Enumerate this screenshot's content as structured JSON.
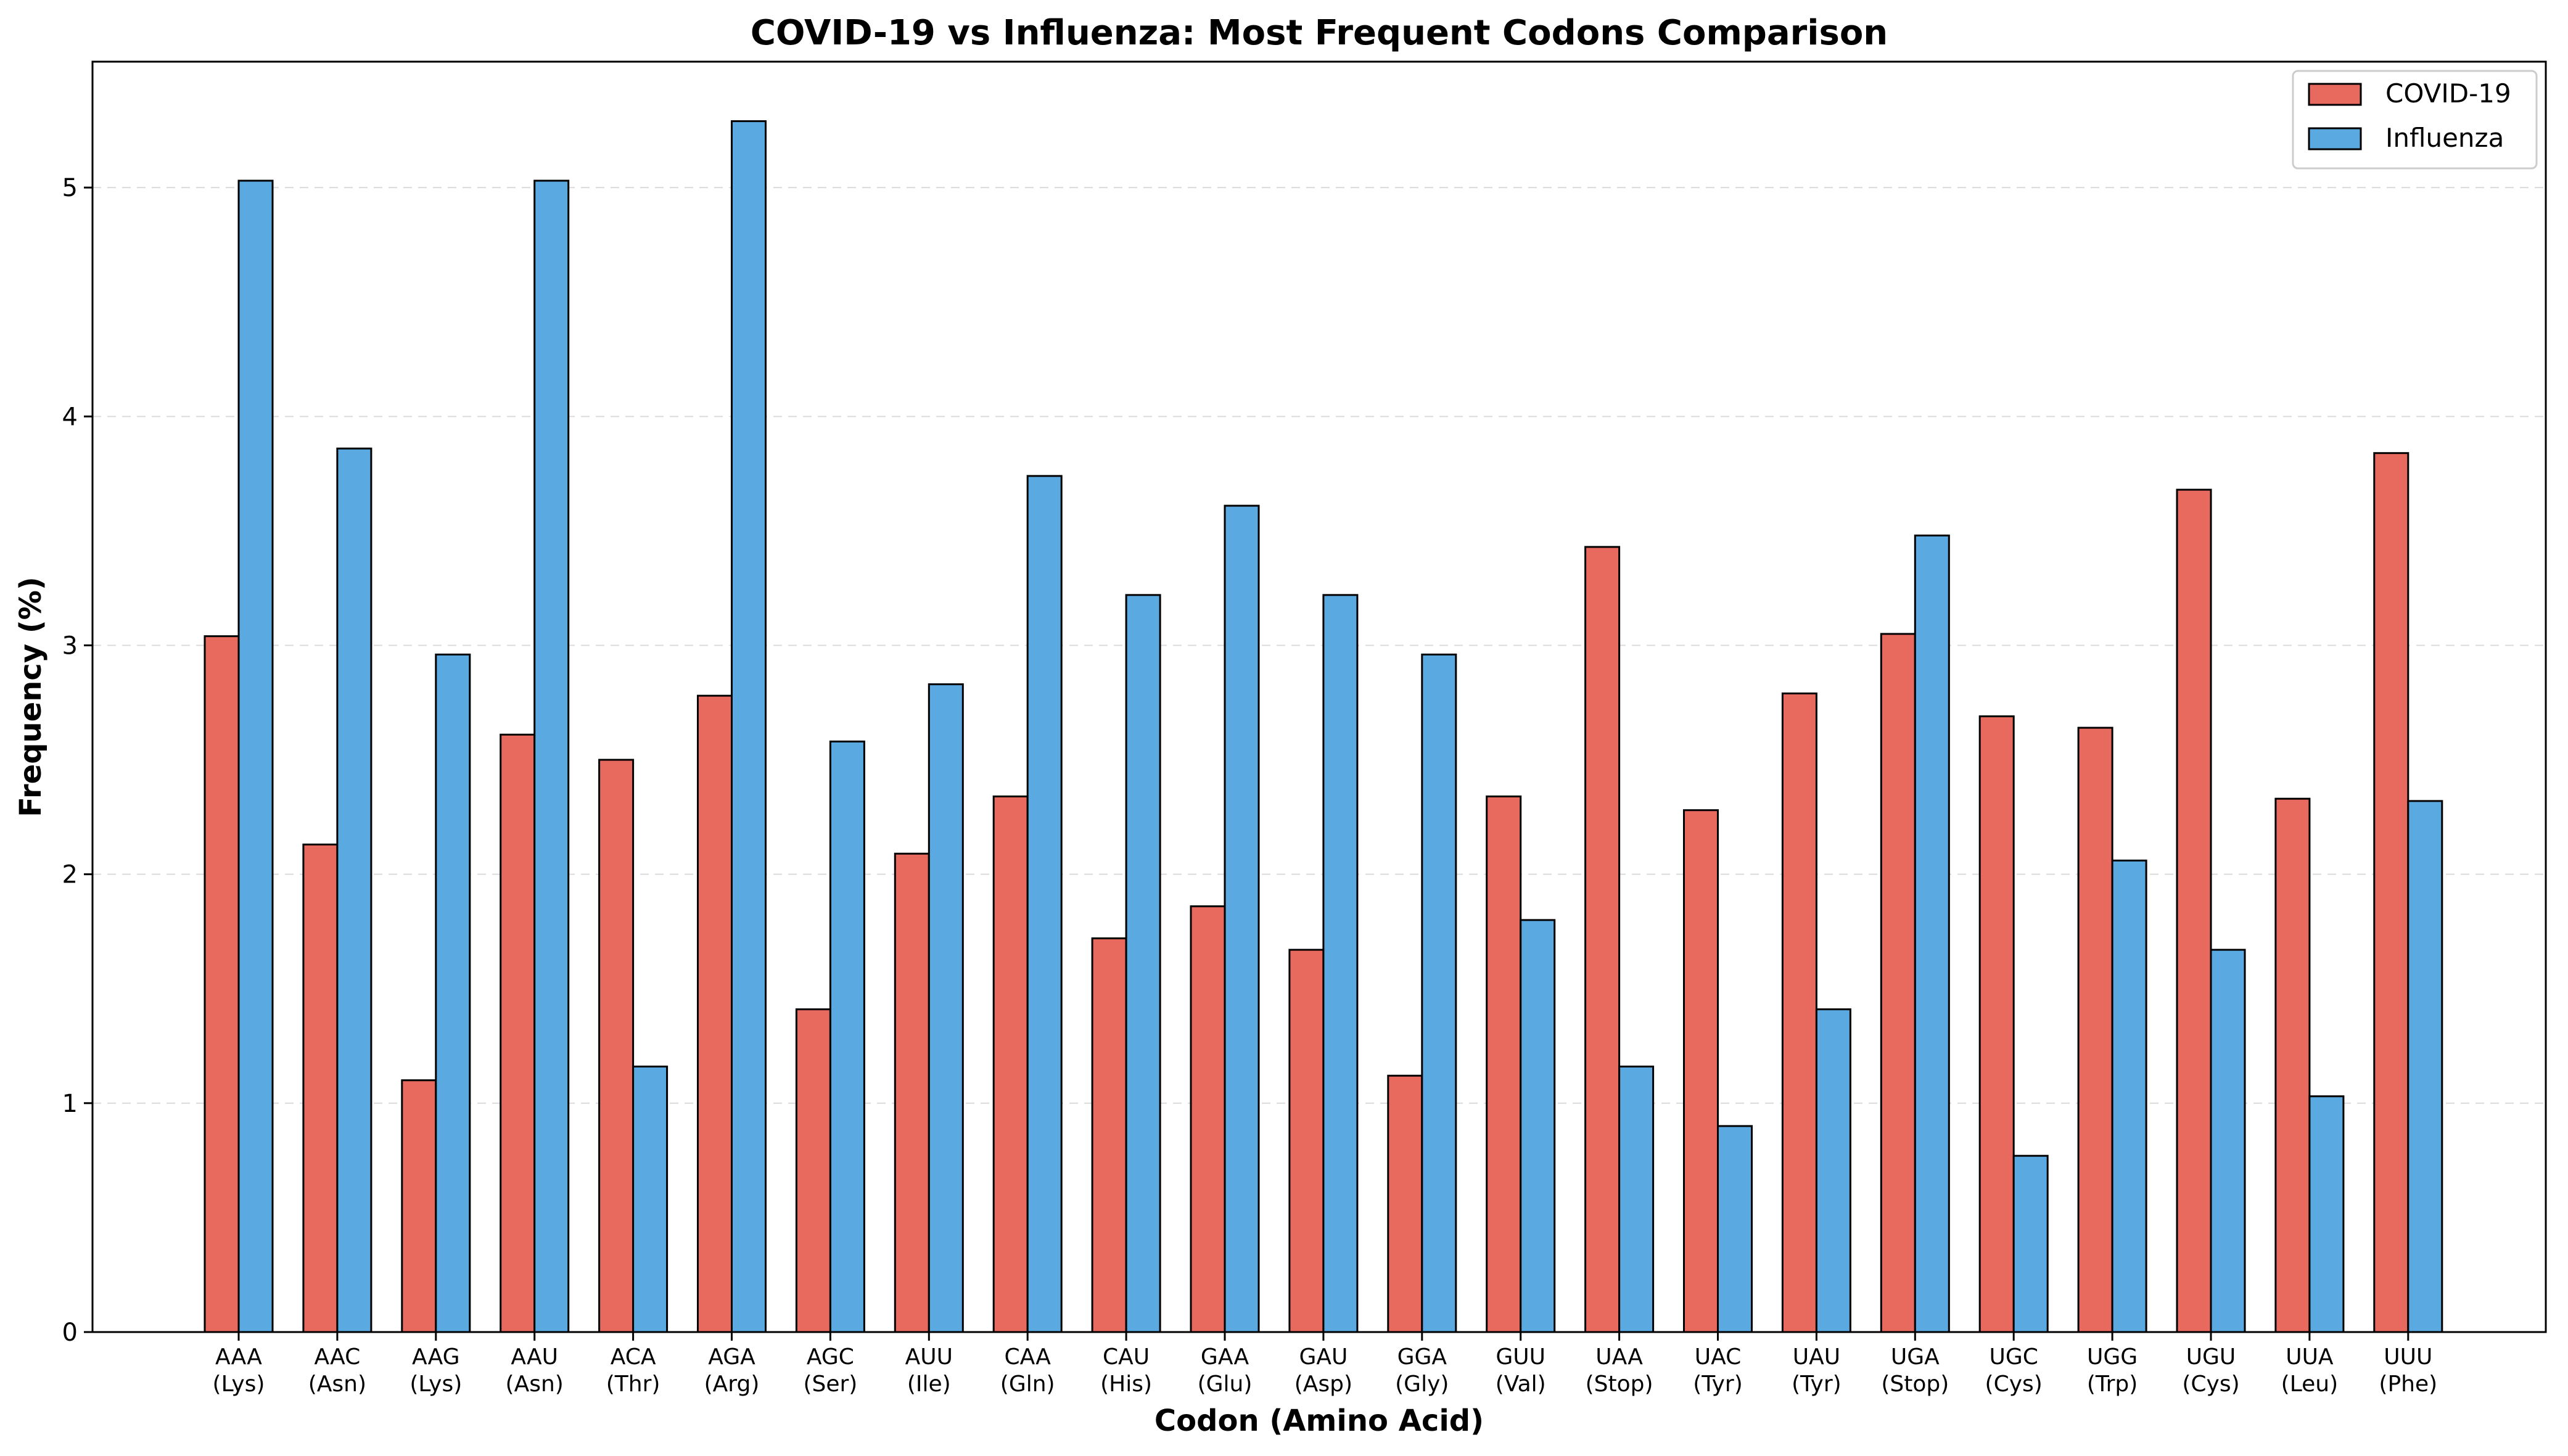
{
  "chart_data": {
    "type": "bar",
    "title": "COVID-19 vs Influenza: Most Frequent Codons Comparison",
    "xlabel": "Codon (Amino Acid)",
    "ylabel": "Frequency (%)",
    "ylim": [
      0,
      5.55
    ],
    "yticks": [
      "0",
      "1",
      "2",
      "3",
      "4",
      "5"
    ],
    "grid": "horizontal dashed",
    "legend_position": "top-right",
    "categories": [
      {
        "codon": "AAA",
        "amino": "(Lys)"
      },
      {
        "codon": "AAC",
        "amino": "(Asn)"
      },
      {
        "codon": "AAG",
        "amino": "(Lys)"
      },
      {
        "codon": "AAU",
        "amino": "(Asn)"
      },
      {
        "codon": "ACA",
        "amino": "(Thr)"
      },
      {
        "codon": "AGA",
        "amino": "(Arg)"
      },
      {
        "codon": "AGC",
        "amino": "(Ser)"
      },
      {
        "codon": "AUU",
        "amino": "(Ile)"
      },
      {
        "codon": "CAA",
        "amino": "(Gln)"
      },
      {
        "codon": "CAU",
        "amino": "(His)"
      },
      {
        "codon": "GAA",
        "amino": "(Glu)"
      },
      {
        "codon": "GAU",
        "amino": "(Asp)"
      },
      {
        "codon": "GGA",
        "amino": "(Gly)"
      },
      {
        "codon": "GUU",
        "amino": "(Val)"
      },
      {
        "codon": "UAA",
        "amino": "(Stop)"
      },
      {
        "codon": "UAC",
        "amino": "(Tyr)"
      },
      {
        "codon": "UAU",
        "amino": "(Tyr)"
      },
      {
        "codon": "UGA",
        "amino": "(Stop)"
      },
      {
        "codon": "UGC",
        "amino": "(Cys)"
      },
      {
        "codon": "UGG",
        "amino": "(Trp)"
      },
      {
        "codon": "UGU",
        "amino": "(Cys)"
      },
      {
        "codon": "UUA",
        "amino": "(Leu)"
      },
      {
        "codon": "UUU",
        "amino": "(Phe)"
      }
    ],
    "series": [
      {
        "name": "COVID-19",
        "color": "#e8695d",
        "values": [
          3.04,
          2.13,
          1.1,
          2.61,
          2.5,
          2.78,
          1.41,
          2.09,
          2.34,
          1.72,
          1.86,
          1.67,
          1.12,
          2.34,
          3.43,
          2.28,
          2.79,
          3.05,
          2.69,
          2.64,
          3.68,
          2.33,
          3.84
        ]
      },
      {
        "name": "Influenza",
        "color": "#5aa9e0",
        "values": [
          5.03,
          3.86,
          2.96,
          5.03,
          1.16,
          5.29,
          2.58,
          2.83,
          3.74,
          3.22,
          3.61,
          3.22,
          2.96,
          1.8,
          1.16,
          0.9,
          1.41,
          3.48,
          0.77,
          2.06,
          1.67,
          1.03,
          2.32
        ]
      }
    ]
  }
}
